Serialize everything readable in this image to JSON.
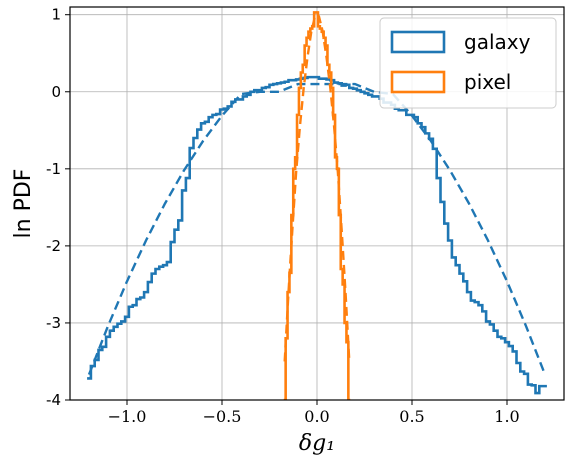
{
  "chart_data": {
    "type": "line",
    "xlabel": "δg₁",
    "ylabel": "ln PDF",
    "xlim": [
      -1.3,
      1.3
    ],
    "ylim": [
      -4,
      1.1
    ],
    "xticks": [
      {
        "value": -1.0,
        "label": "−1.0"
      },
      {
        "value": -0.5,
        "label": "−0.5"
      },
      {
        "value": 0.0,
        "label": "0.0"
      },
      {
        "value": 0.5,
        "label": "0.5"
      },
      {
        "value": 1.0,
        "label": "1.0"
      }
    ],
    "yticks": [
      {
        "value": 1,
        "label": "1"
      },
      {
        "value": 0,
        "label": "0"
      },
      {
        "value": -1,
        "label": "-1"
      },
      {
        "value": -2,
        "label": "-2"
      },
      {
        "value": -3,
        "label": "-3"
      },
      {
        "value": -4,
        "label": "-4"
      }
    ],
    "grid": true,
    "legend_position": "top-right",
    "series": [
      {
        "name": "galaxy",
        "color": "#1f77b4",
        "style": "step",
        "x": [
          -1.2,
          -1.18,
          -1.16,
          -1.14,
          -1.12,
          -1.1,
          -1.08,
          -1.06,
          -1.04,
          -1.02,
          -1.0,
          -0.98,
          -0.96,
          -0.94,
          -0.92,
          -0.9,
          -0.88,
          -0.86,
          -0.84,
          -0.82,
          -0.8,
          -0.78,
          -0.76,
          -0.74,
          -0.72,
          -0.7,
          -0.68,
          -0.66,
          -0.64,
          -0.62,
          -0.6,
          -0.58,
          -0.56,
          -0.54,
          -0.52,
          -0.5,
          -0.48,
          -0.46,
          -0.44,
          -0.42,
          -0.4,
          -0.38,
          -0.36,
          -0.34,
          -0.32,
          -0.3,
          -0.28,
          -0.26,
          -0.24,
          -0.22,
          -0.2,
          -0.18,
          -0.16,
          -0.14,
          -0.12,
          -0.1,
          -0.08,
          -0.06,
          -0.04,
          -0.02,
          0.0,
          0.02,
          0.04,
          0.06,
          0.08,
          0.1,
          0.12,
          0.14,
          0.16,
          0.18,
          0.2,
          0.22,
          0.24,
          0.26,
          0.28,
          0.3,
          0.32,
          0.34,
          0.36,
          0.38,
          0.4,
          0.42,
          0.44,
          0.46,
          0.48,
          0.5,
          0.52,
          0.54,
          0.56,
          0.58,
          0.6,
          0.62,
          0.64,
          0.66,
          0.68,
          0.7,
          0.72,
          0.74,
          0.76,
          0.78,
          0.8,
          0.82,
          0.84,
          0.86,
          0.88,
          0.9,
          0.92,
          0.94,
          0.96,
          0.98,
          1.0,
          1.02,
          1.04,
          1.06,
          1.08,
          1.1,
          1.12,
          1.14,
          1.16,
          1.18,
          1.2
        ],
        "y": [
          -3.72,
          -3.56,
          -3.48,
          -3.35,
          -3.31,
          -3.18,
          -3.1,
          -3.05,
          -3.01,
          -2.98,
          -2.92,
          -2.79,
          -2.77,
          -2.69,
          -2.67,
          -2.6,
          -2.47,
          -2.36,
          -2.3,
          -2.27,
          -2.25,
          -2.21,
          -1.95,
          -1.79,
          -1.67,
          -1.28,
          -1.12,
          -0.73,
          -0.6,
          -0.49,
          -0.41,
          -0.39,
          -0.33,
          -0.3,
          -0.29,
          -0.23,
          -0.22,
          -0.19,
          -0.13,
          -0.1,
          -0.1,
          -0.06,
          -0.04,
          0.0,
          0.02,
          0.02,
          0.05,
          0.06,
          0.09,
          0.1,
          0.11,
          0.12,
          0.13,
          0.15,
          0.15,
          0.16,
          0.17,
          0.18,
          0.19,
          0.19,
          0.19,
          0.17,
          0.17,
          0.16,
          0.15,
          0.12,
          0.11,
          0.08,
          0.09,
          0.05,
          0.04,
          0.02,
          0.0,
          -0.02,
          -0.04,
          -0.06,
          -0.06,
          -0.09,
          -0.14,
          -0.14,
          -0.17,
          -0.22,
          -0.24,
          -0.24,
          -0.3,
          -0.3,
          -0.33,
          -0.41,
          -0.46,
          -0.54,
          -0.61,
          -0.74,
          -1.12,
          -1.43,
          -1.71,
          -1.93,
          -2.15,
          -2.25,
          -2.36,
          -2.46,
          -2.6,
          -2.71,
          -2.73,
          -2.77,
          -2.85,
          -2.98,
          -3.02,
          -3.1,
          -3.18,
          -3.2,
          -3.25,
          -3.3,
          -3.37,
          -3.52,
          -3.63,
          -3.66,
          -3.8,
          -3.81,
          -3.91,
          -3.82,
          -3.82
        ]
      },
      {
        "name": "",
        "color": "#1f77b4",
        "style": "dashed",
        "x": [
          -1.2,
          -1.1,
          -1.0,
          -0.9,
          -0.8,
          -0.7,
          -0.6,
          -0.5,
          -0.4,
          -0.3,
          -0.2,
          -0.1,
          0.0,
          0.1,
          0.2,
          0.3,
          0.4,
          0.5,
          0.6,
          0.7,
          0.8,
          0.9,
          1.0,
          1.1,
          1.2
        ],
        "y": [
          -3.67,
          -3.04,
          -2.46,
          -1.93,
          -1.45,
          -1.02,
          -0.64,
          -0.31,
          -0.03,
          0.0,
          0.0,
          0.1,
          0.1,
          0.1,
          0.1,
          0.0,
          -0.03,
          -0.31,
          -0.64,
          -1.02,
          -1.45,
          -1.93,
          -2.46,
          -3.04,
          -3.67
        ]
      },
      {
        "name": "pixel",
        "color": "#ff7f0e",
        "style": "step",
        "x": [
          -0.17,
          -0.16,
          -0.15,
          -0.14,
          -0.13,
          -0.12,
          -0.11,
          -0.1,
          -0.09,
          -0.08,
          -0.07,
          -0.06,
          -0.05,
          -0.04,
          -0.03,
          -0.02,
          -0.01,
          0.0,
          0.01,
          0.02,
          0.03,
          0.04,
          0.05,
          0.06,
          0.07,
          0.08,
          0.09,
          0.1,
          0.11,
          0.12,
          0.13,
          0.14,
          0.15,
          0.16,
          0.17
        ],
        "y": [
          -4.0,
          -3.2,
          -2.6,
          -2.35,
          -1.6,
          -1.0,
          -0.85,
          -0.3,
          0.05,
          0.25,
          0.35,
          0.6,
          0.7,
          0.78,
          0.82,
          0.85,
          1.03,
          1.03,
          0.85,
          0.82,
          0.78,
          0.7,
          0.6,
          0.35,
          0.25,
          0.05,
          -0.3,
          -0.85,
          -1.0,
          -1.6,
          -2.3,
          -2.5,
          -3.0,
          -3.25,
          -4.0
        ]
      },
      {
        "name": "",
        "color": "#ff7f0e",
        "style": "dashed",
        "x": [
          -0.17,
          -0.15,
          -0.13,
          -0.11,
          -0.09,
          -0.07,
          -0.05,
          -0.03,
          -0.01,
          0.0,
          0.01,
          0.03,
          0.05,
          0.07,
          0.09,
          0.11,
          0.13,
          0.15,
          0.17
        ],
        "y": [
          -3.5,
          -2.6,
          -1.8,
          -1.05,
          -0.45,
          0.05,
          0.45,
          0.78,
          0.98,
          1.0,
          0.98,
          0.78,
          0.45,
          0.05,
          -0.45,
          -1.05,
          -1.8,
          -2.6,
          -3.5
        ]
      }
    ]
  }
}
